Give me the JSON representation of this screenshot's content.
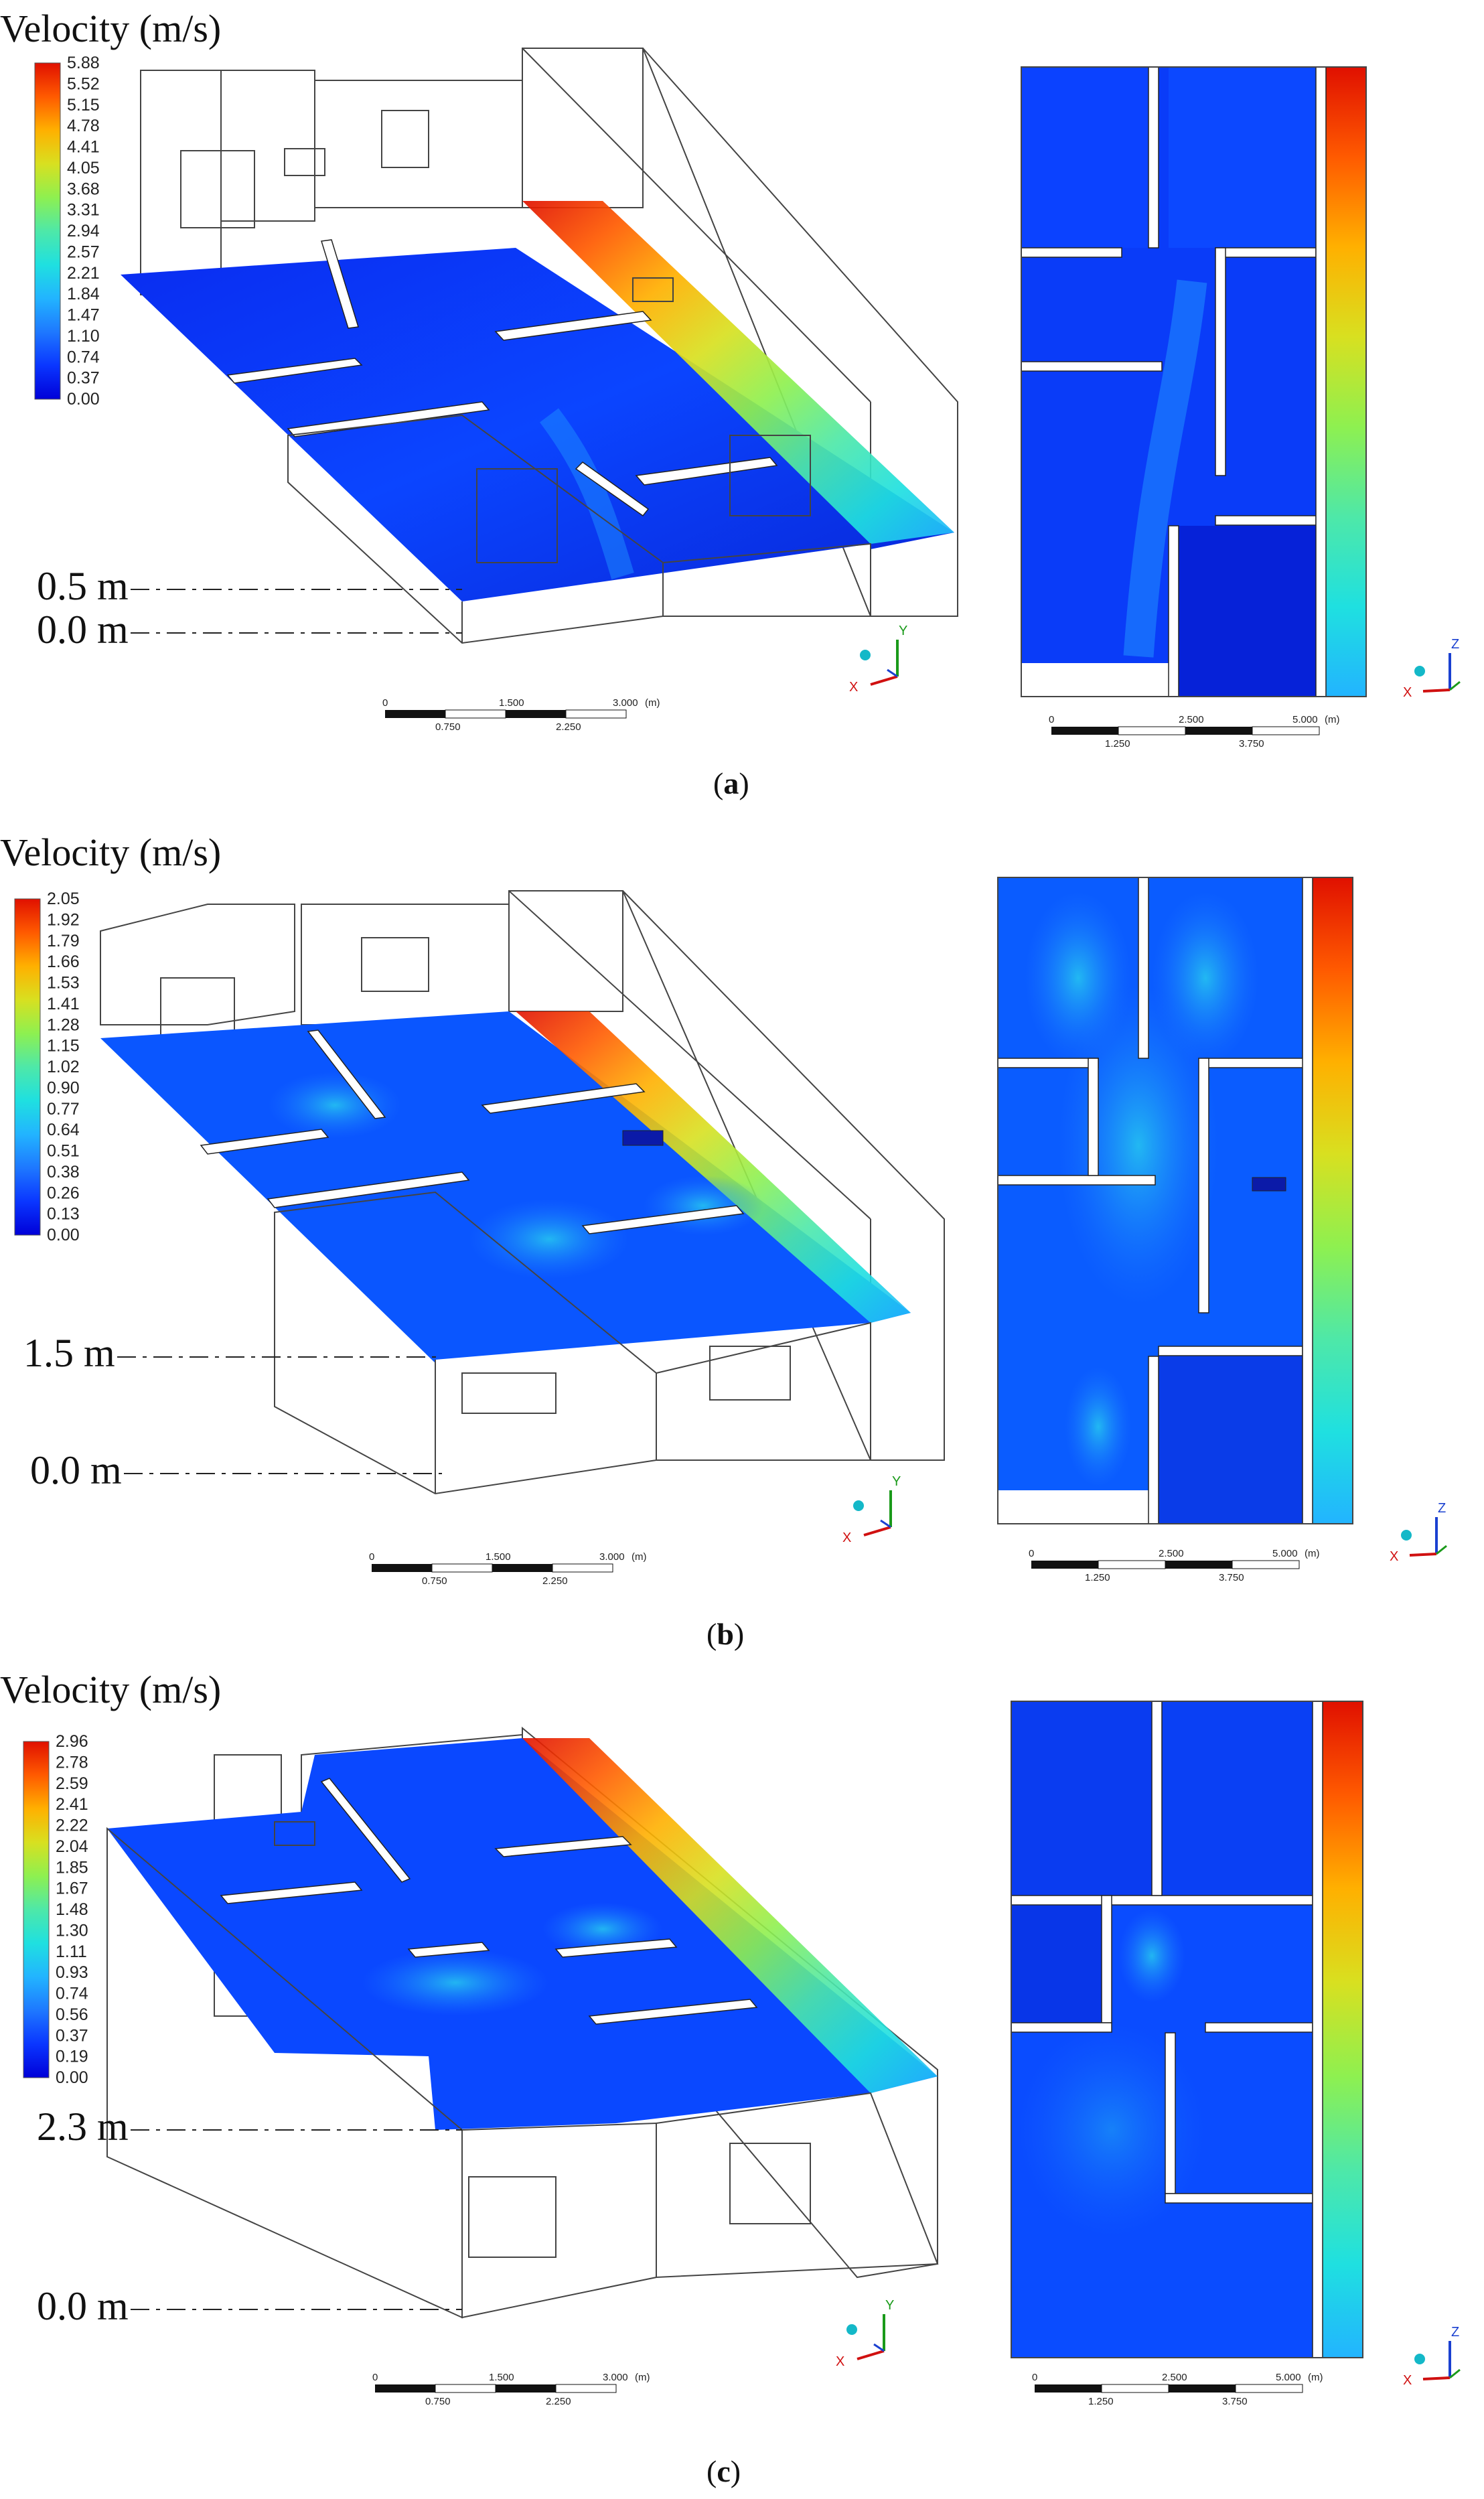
{
  "legend_title": "Velocity (m/s)",
  "scale_bar_3d": {
    "labels_top": [
      "0",
      "1.500",
      "3.000"
    ],
    "unit": "(m)",
    "labels_bottom": [
      "0.750",
      "2.250"
    ]
  },
  "scale_bar_2d": {
    "labels_top": [
      "0",
      "2.500",
      "5.000"
    ],
    "unit": "(m)",
    "labels_bottom": [
      "1.250",
      "3.750"
    ]
  },
  "axes": {
    "x": "X",
    "y": "Y",
    "z": "Z"
  },
  "colormap": [
    "#0000d8",
    "#0a36ff",
    "#1e78ff",
    "#22b4ff",
    "#1fe0e0",
    "#4ee8a8",
    "#8ef050",
    "#d8e020",
    "#ffb000",
    "#ff5a00",
    "#e01000"
  ],
  "panels": [
    {
      "caption": "(a)",
      "caption_letter": "a",
      "height_top": "0.5 m",
      "height_bottom": "0.0 m",
      "ticks": [
        "5.88",
        "5.52",
        "5.15",
        "4.78",
        "4.41",
        "4.05",
        "3.68",
        "3.31",
        "2.94",
        "2.57",
        "2.21",
        "1.84",
        "1.47",
        "1.10",
        "0.74",
        "0.37",
        "0.00"
      ],
      "vmin": 0.0,
      "vmax": 5.88
    },
    {
      "caption": "(b)",
      "caption_letter": "b",
      "height_top": "1.5 m",
      "height_bottom": "0.0 m",
      "ticks": [
        "2.05",
        "1.92",
        "1.79",
        "1.66",
        "1.53",
        "1.41",
        "1.28",
        "1.15",
        "1.02",
        "0.90",
        "0.77",
        "0.64",
        "0.51",
        "0.38",
        "0.26",
        "0.13",
        "0.00"
      ],
      "vmin": 0.0,
      "vmax": 2.05
    },
    {
      "caption": "(c)",
      "caption_letter": "c",
      "height_top": "2.3 m",
      "height_bottom": "0.0 m",
      "ticks": [
        "2.96",
        "2.78",
        "2.59",
        "2.41",
        "2.22",
        "2.04",
        "1.85",
        "1.67",
        "1.48",
        "1.30",
        "1.11",
        "0.93",
        "0.74",
        "0.56",
        "0.37",
        "0.19",
        "0.00"
      ],
      "vmin": 0.0,
      "vmax": 2.96
    }
  ]
}
